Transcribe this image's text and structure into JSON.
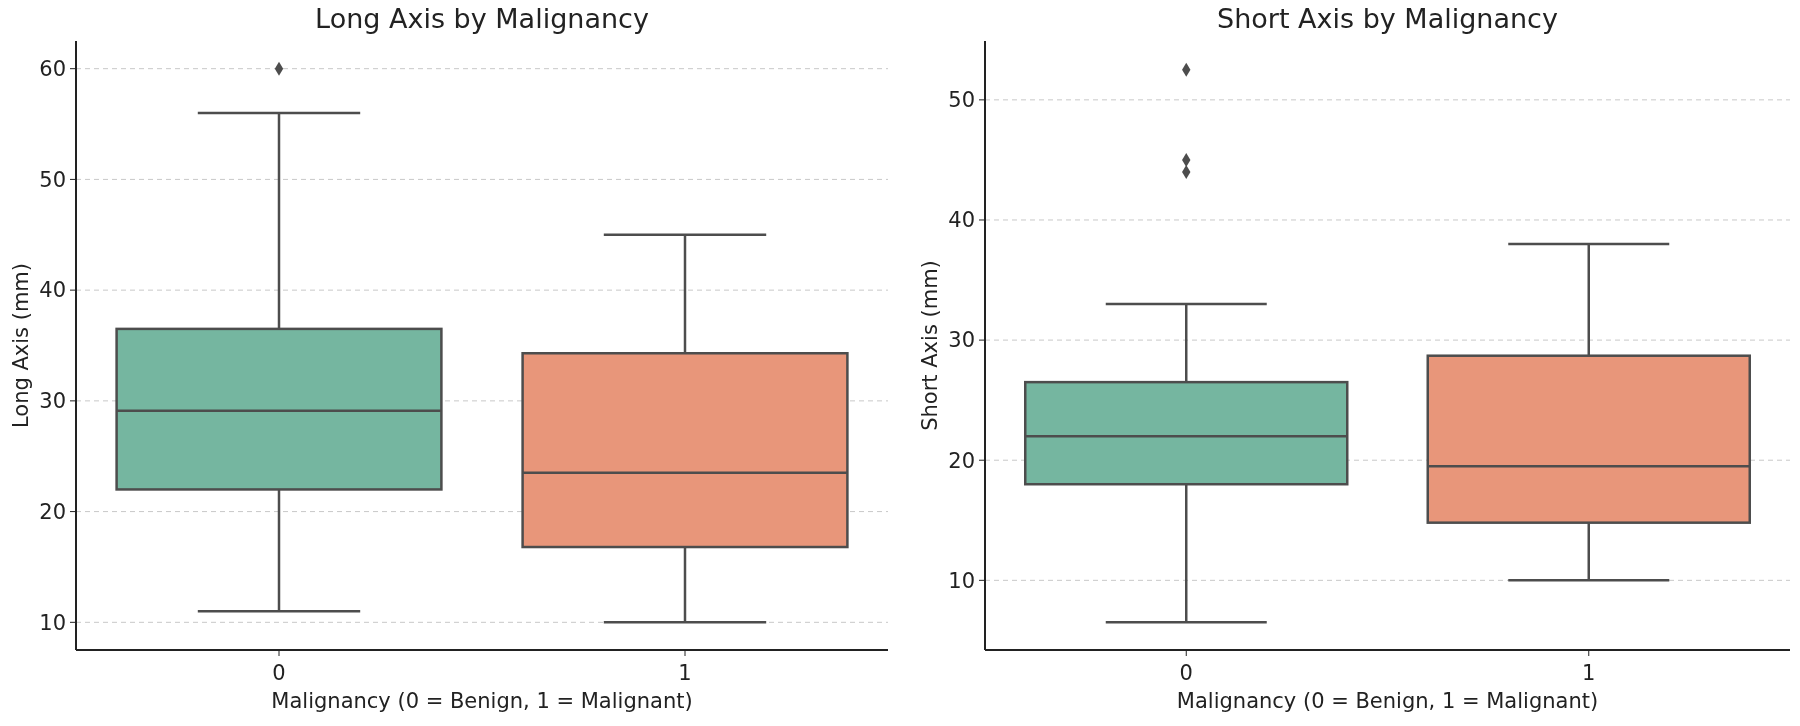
{
  "chart_data": [
    {
      "type": "box",
      "title": "Long Axis by Malignancy",
      "xlabel": "Malignancy (0 = Benign, 1 = Malignant)",
      "ylabel": "Long Axis (mm)",
      "categories": [
        "0",
        "1"
      ],
      "colors": [
        "#75b6a0",
        "#e8967a"
      ],
      "boxes": [
        {
          "low": 11,
          "q1": 22,
          "median": 29.1,
          "q3": 36.5,
          "high": 56,
          "outliers": [
            60
          ]
        },
        {
          "low": 10,
          "q1": 16.8,
          "median": 23.5,
          "q3": 34.3,
          "high": 45
        }
      ],
      "ylim": [
        7.5,
        62.5
      ],
      "yticks": [
        10,
        20,
        30,
        40,
        50,
        60
      ],
      "grid": "y",
      "marker": "diamond"
    },
    {
      "type": "box",
      "title": "Short Axis by Malignancy",
      "xlabel": "Malignancy (0 = Benign, 1 = Malignant)",
      "ylabel": "Short Axis (mm)",
      "categories": [
        "0",
        "1"
      ],
      "colors": [
        "#75b6a0",
        "#e8967a"
      ],
      "boxes": [
        {
          "low": 6.5,
          "q1": 18,
          "median": 22,
          "q3": 26.5,
          "high": 33,
          "outliers": [
            44,
            45,
            52.5
          ]
        },
        {
          "low": 10,
          "q1": 14.8,
          "median": 19.5,
          "q3": 28.7,
          "high": 38
        }
      ],
      "ylim": [
        4.2,
        54.9
      ],
      "yticks": [
        10,
        20,
        30,
        40,
        50
      ],
      "grid": "y",
      "marker": "diamond"
    }
  ]
}
